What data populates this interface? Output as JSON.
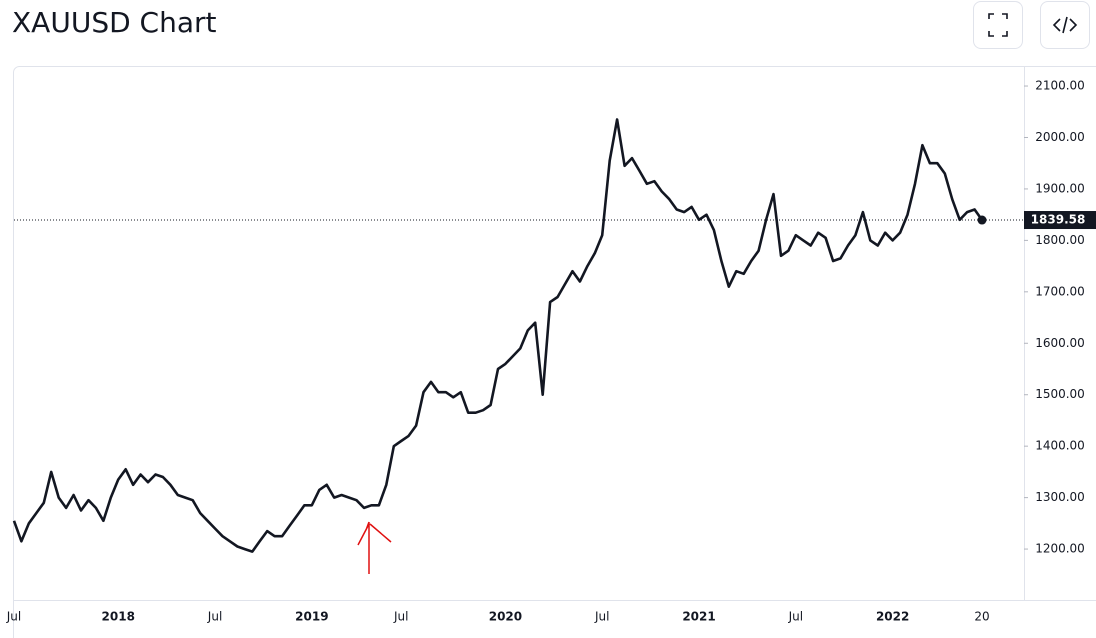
{
  "chart_data": {
    "type": "line",
    "title": "XAUUSD Chart",
    "categories": [
      "Jul",
      null,
      null,
      null,
      null,
      null,
      null,
      null,
      null,
      null,
      null,
      null,
      null,
      null,
      "2018",
      null,
      null,
      null,
      null,
      null,
      null,
      null,
      null,
      null,
      null,
      null,
      null,
      "Jul",
      null,
      null,
      null,
      null,
      null,
      null,
      null,
      null,
      null,
      null,
      null,
      null,
      "2019",
      null,
      null,
      null,
      null,
      null,
      null,
      null,
      null,
      null,
      null,
      null,
      "Jul",
      null,
      null,
      null,
      null,
      null,
      null,
      null,
      null,
      null,
      null,
      null,
      null,
      null,
      "2020",
      null,
      null,
      null,
      null,
      null,
      null,
      null,
      null,
      null,
      null,
      null,
      null,
      "Jul",
      null,
      null,
      null,
      null,
      null,
      null,
      null,
      null,
      null,
      null,
      null,
      null,
      "2021",
      null,
      null,
      null,
      null,
      null,
      null,
      null,
      null,
      null,
      null,
      null,
      null,
      "Jul",
      null,
      null,
      null,
      null,
      null,
      null,
      null,
      null,
      null,
      null,
      null,
      null,
      "2022",
      null,
      null,
      null,
      null,
      null,
      null,
      null,
      null,
      null,
      null,
      null,
      "20"
    ],
    "series": [
      {
        "name": "XAUUSD",
        "color": "#131722",
        "values": [
          1255,
          1215,
          1250,
          1270,
          1290,
          1350,
          1300,
          1280,
          1305,
          1275,
          1295,
          1280,
          1255,
          1300,
          1335,
          1355,
          1325,
          1345,
          1330,
          1345,
          1340,
          1325,
          1305,
          1300,
          1295,
          1270,
          1255,
          1240,
          1225,
          1215,
          1205,
          1200,
          1195,
          1215,
          1235,
          1225,
          1225,
          1245,
          1265,
          1285,
          1285,
          1315,
          1325,
          1300,
          1305,
          1300,
          1295,
          1280,
          1285,
          1285,
          1325,
          1400,
          1410,
          1420,
          1440,
          1505,
          1525,
          1505,
          1505,
          1495,
          1505,
          1465,
          1465,
          1470,
          1480,
          1550,
          1560,
          1575,
          1590,
          1625,
          1640,
          1500,
          1680,
          1690,
          1715,
          1740,
          1720,
          1750,
          1775,
          1810,
          1955,
          2035,
          1945,
          1960,
          1935,
          1910,
          1915,
          1895,
          1880,
          1860,
          1855,
          1865,
          1840,
          1850,
          1820,
          1760,
          1710,
          1740,
          1735,
          1760,
          1780,
          1840,
          1890,
          1770,
          1780,
          1810,
          1800,
          1790,
          1815,
          1805,
          1760,
          1765,
          1790,
          1810,
          1855,
          1800,
          1790,
          1815,
          1800,
          1815,
          1850,
          1910,
          1985,
          1950,
          1950,
          1930,
          1880,
          1840,
          1855,
          1860,
          1839.58
        ]
      }
    ],
    "ylim": [
      1101,
      2137
    ],
    "yticks": [
      {
        "value": 1200,
        "label": "1200.00"
      },
      {
        "value": 1300,
        "label": "1300.00"
      },
      {
        "value": 1400,
        "label": "1400.00"
      },
      {
        "value": 1500,
        "label": "1500.00"
      },
      {
        "value": 1600,
        "label": "1600.00"
      },
      {
        "value": 1700,
        "label": "1700.00"
      },
      {
        "value": 1800,
        "label": "1800.00"
      },
      {
        "value": 1900,
        "label": "1900.00"
      },
      {
        "value": 2000,
        "label": "2000.00"
      },
      {
        "value": 2100,
        "label": "2100.00"
      }
    ],
    "grid": false
  }
}
